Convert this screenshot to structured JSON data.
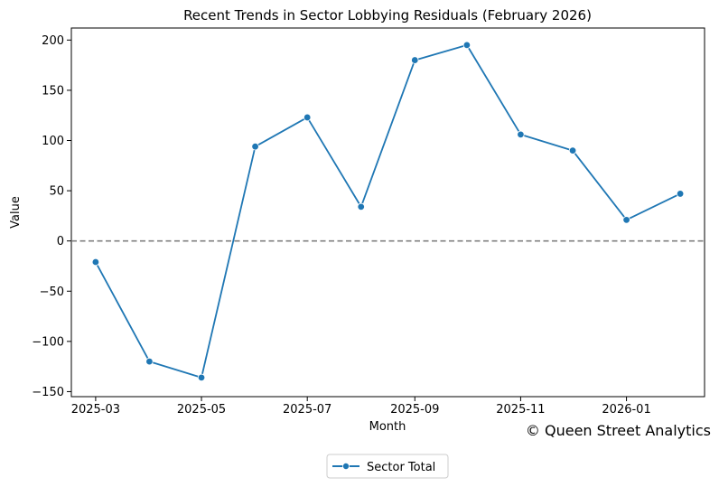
{
  "chart_data": {
    "type": "line",
    "title": "Recent Trends in Sector Lobbying Residuals (February 2026)",
    "xlabel": "Month",
    "ylabel": "Value",
    "x_type": "date",
    "x": [
      "2025-03-01",
      "2025-04-01",
      "2025-05-01",
      "2025-06-01",
      "2025-07-01",
      "2025-08-01",
      "2025-09-01",
      "2025-10-01",
      "2025-11-01",
      "2025-12-01",
      "2026-01-01",
      "2026-02-01"
    ],
    "x_ticks": [
      "2025-03",
      "2025-05",
      "2025-07",
      "2025-09",
      "2025-11",
      "2026-01"
    ],
    "ylim": [
      -155,
      212
    ],
    "y_ticks": [
      -150,
      -100,
      -50,
      0,
      50,
      100,
      150,
      200
    ],
    "series": [
      {
        "name": "Sector Total",
        "values": [
          -21,
          -120,
          -136,
          94,
          123,
          34,
          180,
          195,
          106,
          90,
          21,
          47
        ],
        "color": "#1f77b4",
        "marker": "circle"
      }
    ],
    "reference_line": {
      "y": 0,
      "style": "dashed",
      "color": "#808080"
    },
    "legend": {
      "placement": "bottom-center"
    },
    "grid": false,
    "watermark": "© Queen Street Analytics"
  }
}
